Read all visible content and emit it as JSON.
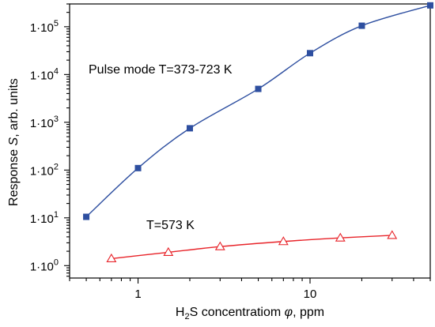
{
  "chart_data": {
    "type": "scatter",
    "xlabel": {
      "prefix": "H",
      "sub": "2",
      "middle": "S concentratiom ",
      "symbol": "φ",
      "suffix": ", ppm"
    },
    "ylabel": {
      "prefix": "Response ",
      "symbol": "S",
      "suffix": ", arb. units"
    },
    "xscale": "log",
    "yscale": "log",
    "xlim": [
      0.4,
      50
    ],
    "ylim": [
      0.55,
      300000
    ],
    "grid": false,
    "x_ticks": [
      {
        "value": 1,
        "label": "1"
      },
      {
        "value": 10,
        "label": "10"
      }
    ],
    "y_ticks": [
      {
        "value": 1,
        "base": "1·10",
        "exp": "0"
      },
      {
        "value": 10,
        "base": "1·10",
        "exp": "1"
      },
      {
        "value": 100,
        "base": "1·10",
        "exp": "2"
      },
      {
        "value": 1000,
        "base": "1·10",
        "exp": "3"
      },
      {
        "value": 10000,
        "base": "1·10",
        "exp": "4"
      },
      {
        "value": 100000,
        "base": "1·10",
        "exp": "5"
      }
    ],
    "series": [
      {
        "annotation": "Pulse mode T=373-723 K",
        "color": "#2e4fa0",
        "marker": "filled-square",
        "points": [
          {
            "x": 0.5,
            "y": 10.5
          },
          {
            "x": 1,
            "y": 110
          },
          {
            "x": 2,
            "y": 750
          },
          {
            "x": 5,
            "y": 5000
          },
          {
            "x": 10,
            "y": 28000
          },
          {
            "x": 20,
            "y": 105000
          },
          {
            "x": 50,
            "y": 280000
          }
        ]
      },
      {
        "annotation": "T=573 K",
        "color": "#e8242a",
        "marker": "open-triangle",
        "points": [
          {
            "x": 0.7,
            "y": 1.4
          },
          {
            "x": 1.5,
            "y": 1.9
          },
          {
            "x": 3,
            "y": 2.5
          },
          {
            "x": 7,
            "y": 3.2
          },
          {
            "x": 15,
            "y": 3.8
          },
          {
            "x": 30,
            "y": 4.3
          }
        ]
      }
    ]
  }
}
